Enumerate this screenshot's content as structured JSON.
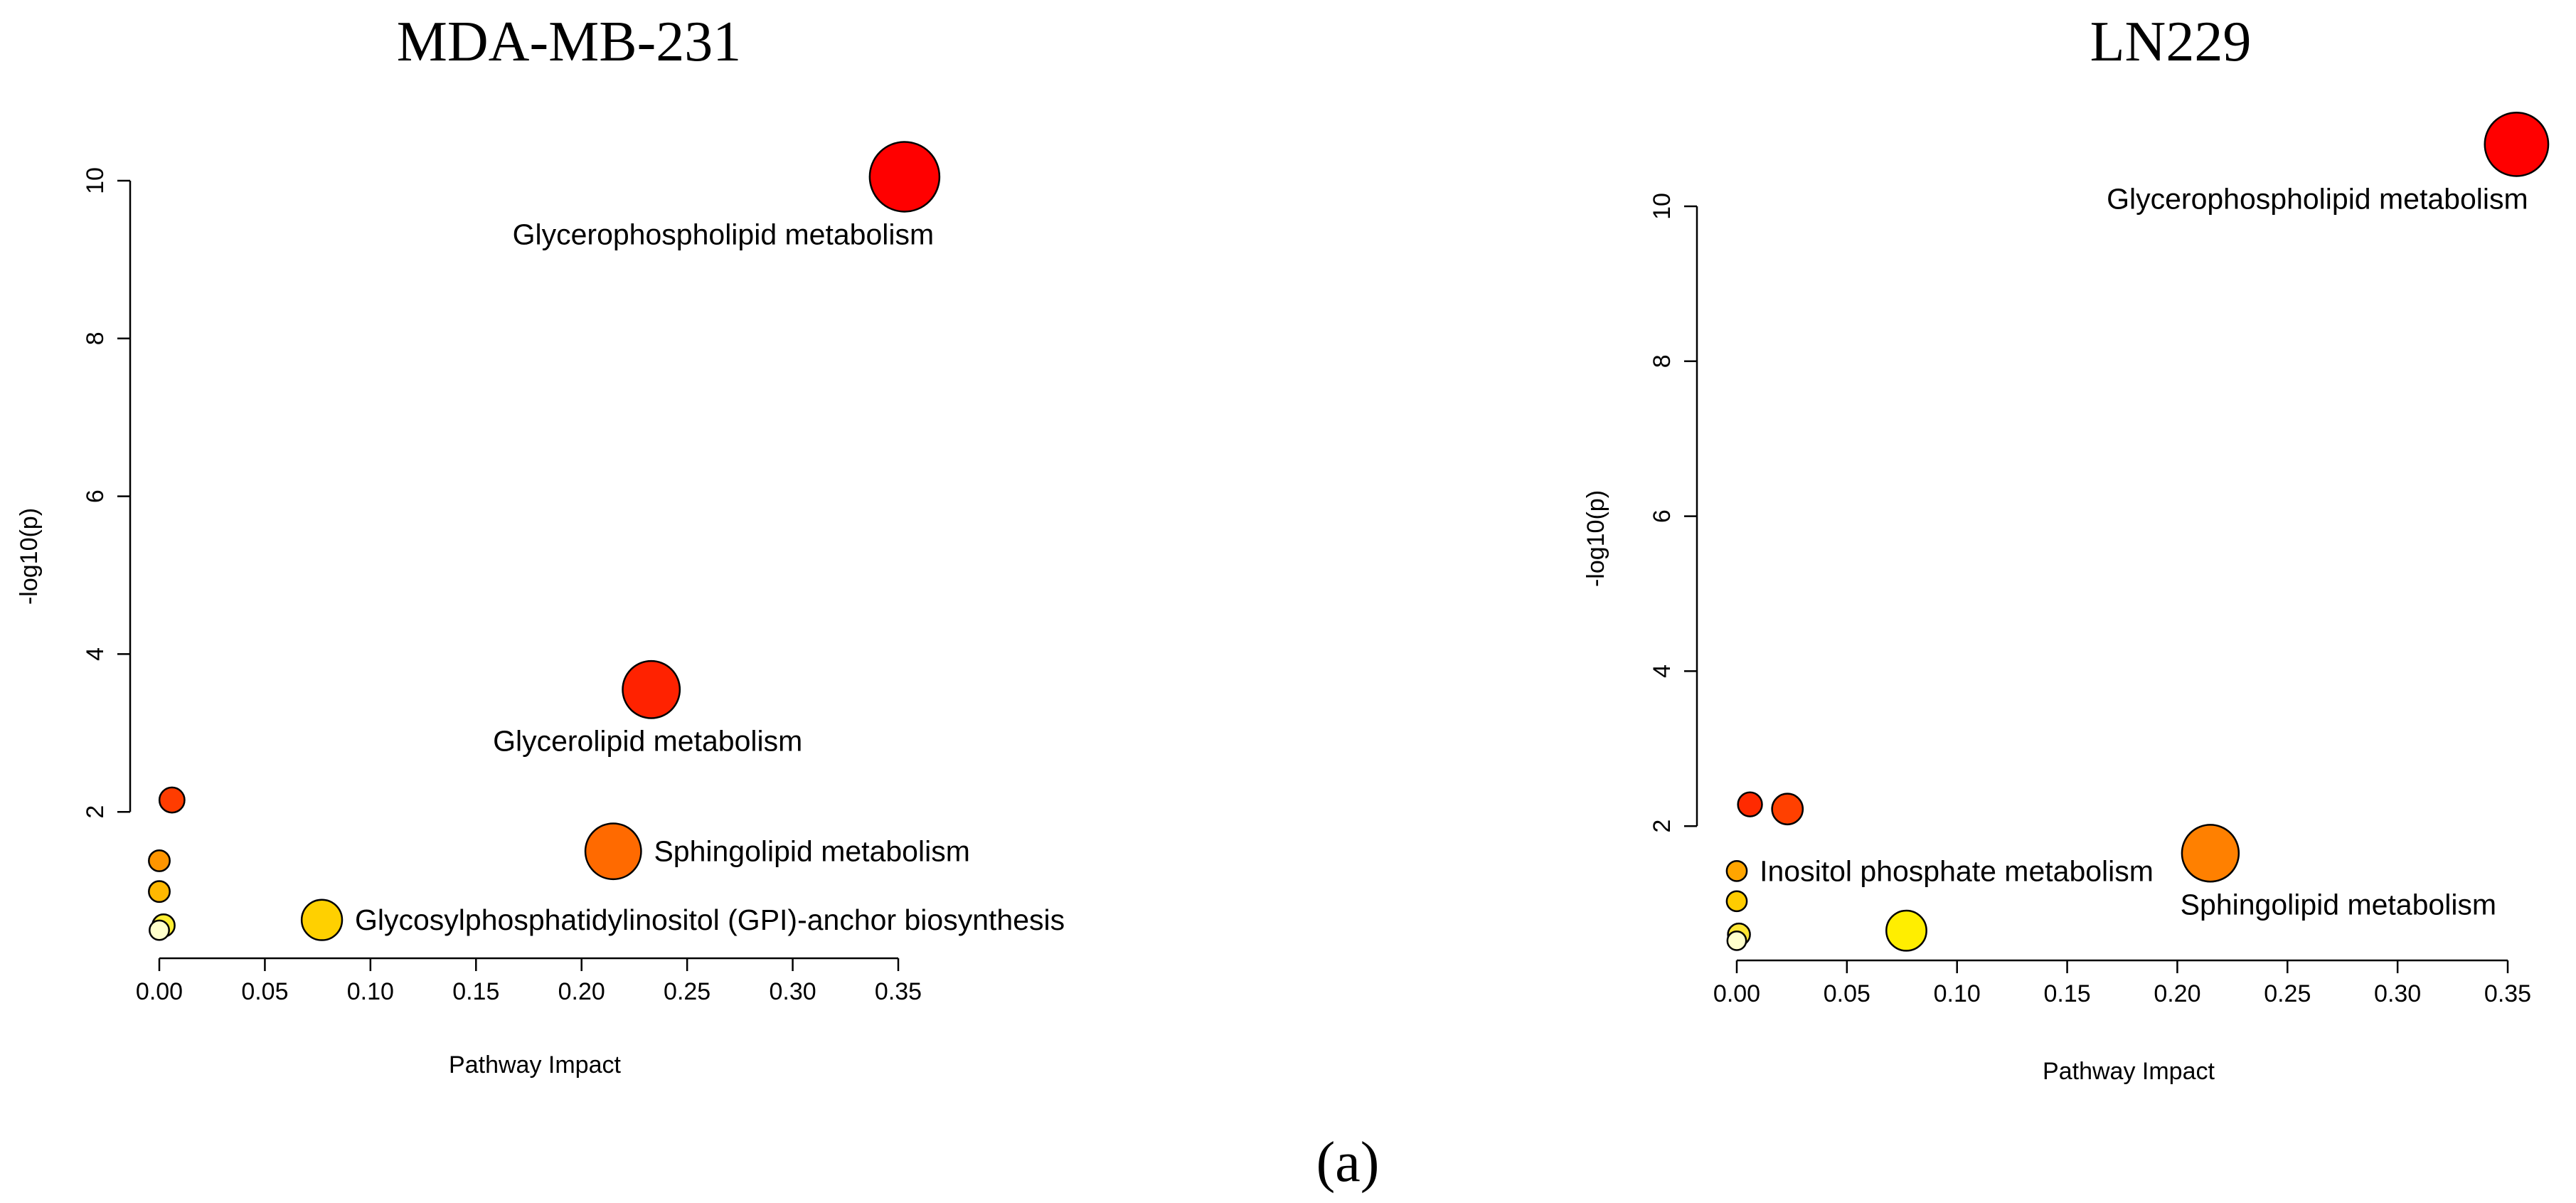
{
  "figure_label": "(a)",
  "chart_data": [
    {
      "type": "scatter",
      "title": "MDA-MB-231",
      "xlabel": "Pathway Impact",
      "ylabel": "-log10(p)",
      "xlim": [
        0.0,
        0.35
      ],
      "ylim": [
        0,
        10
      ],
      "x_ticks": [
        "0.00",
        "0.05",
        "0.10",
        "0.15",
        "0.20",
        "0.25",
        "0.30",
        "0.35"
      ],
      "y_ticks": [
        "2",
        "4",
        "6",
        "8",
        "10"
      ],
      "points": [
        {
          "x": 0.353,
          "y": 10.05,
          "size": 1.0,
          "color": "#ff0000",
          "label": "Glycerophospholipid metabolism",
          "label_position": "below"
        },
        {
          "x": 0.233,
          "y": 3.55,
          "size": 0.82,
          "color": "#ff2200",
          "label": "Glycerolipid metabolism",
          "label_position": "below"
        },
        {
          "x": 0.215,
          "y": 1.5,
          "size": 0.8,
          "color": "#ff6a00",
          "label": "Sphingolipid metabolism",
          "label_position": "right"
        },
        {
          "x": 0.077,
          "y": 0.63,
          "size": 0.58,
          "color": "#ffd000",
          "label": "Glycosylphosphatidylinositol (GPI)-anchor biosynthesis",
          "label_position": "right"
        },
        {
          "x": 0.006,
          "y": 2.15,
          "size": 0.36,
          "color": "#ff3c00",
          "label": "",
          "label_position": ""
        },
        {
          "x": 0.0,
          "y": 1.38,
          "size": 0.3,
          "color": "#ff9500",
          "label": "",
          "label_position": ""
        },
        {
          "x": 0.0,
          "y": 0.99,
          "size": 0.3,
          "color": "#ffb800",
          "label": "",
          "label_position": ""
        },
        {
          "x": 0.002,
          "y": 0.56,
          "size": 0.32,
          "color": "#ffee33",
          "label": "",
          "label_position": ""
        },
        {
          "x": 0.0,
          "y": 0.5,
          "size": 0.28,
          "color": "#ffffcc",
          "label": "",
          "label_position": ""
        }
      ]
    },
    {
      "type": "scatter",
      "title": "LN229",
      "xlabel": "Pathway Impact",
      "ylabel": "-log10(p)",
      "xlim": [
        0.0,
        0.35
      ],
      "ylim": [
        0,
        10
      ],
      "x_ticks": [
        "0.00",
        "0.05",
        "0.10",
        "0.15",
        "0.20",
        "0.25",
        "0.30",
        "0.35"
      ],
      "y_ticks": [
        "2",
        "4",
        "6",
        "8",
        "10"
      ],
      "points": [
        {
          "x": 0.354,
          "y": 10.8,
          "size": 0.95,
          "color": "#ff0000",
          "label": "Glycerophospholipid metabolism",
          "label_position": "below"
        },
        {
          "x": 0.215,
          "y": 1.65,
          "size": 0.85,
          "color": "#ff8000",
          "label": "Sphingolipid metabolism",
          "label_position": "below"
        },
        {
          "x": 0.077,
          "y": 0.65,
          "size": 0.6,
          "color": "#ffee00",
          "label": "",
          "label_position": ""
        },
        {
          "x": 0.006,
          "y": 2.28,
          "size": 0.36,
          "color": "#ff2a00",
          "label": "",
          "label_position": ""
        },
        {
          "x": 0.023,
          "y": 2.22,
          "size": 0.46,
          "color": "#ff4000",
          "label": "",
          "label_position": ""
        },
        {
          "x": 0.0,
          "y": 1.42,
          "size": 0.3,
          "color": "#ffa500",
          "label": "Inositol phosphate metabolism",
          "label_position": "right"
        },
        {
          "x": 0.0,
          "y": 1.03,
          "size": 0.3,
          "color": "#ffcc00",
          "label": "",
          "label_position": ""
        },
        {
          "x": 0.001,
          "y": 0.6,
          "size": 0.33,
          "color": "#ffe533",
          "label": "",
          "label_position": ""
        },
        {
          "x": 0.0,
          "y": 0.52,
          "size": 0.28,
          "color": "#ffffcc",
          "label": "",
          "label_position": ""
        }
      ]
    }
  ]
}
